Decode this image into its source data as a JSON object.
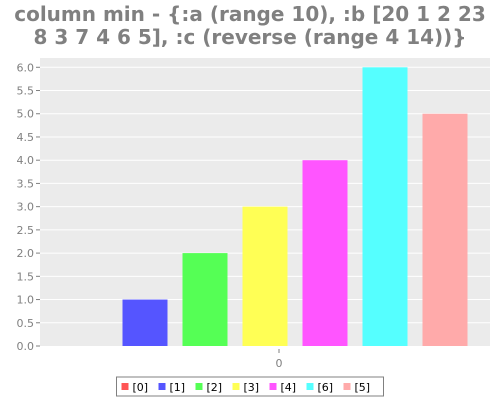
{
  "chart_data": {
    "type": "bar",
    "title_lines": [
      "column min - {:a (range 10), :b [20 1 2 23",
      "8 3 7 4 6 5], :c (reverse (range 4 14))}"
    ],
    "categories": [
      "0"
    ],
    "series": [
      {
        "name": "[0]",
        "color": "#ff5555",
        "values": [
          0
        ]
      },
      {
        "name": "[1]",
        "color": "#5555ff",
        "values": [
          1
        ]
      },
      {
        "name": "[2]",
        "color": "#55ff55",
        "values": [
          2
        ]
      },
      {
        "name": "[3]",
        "color": "#ffff55",
        "values": [
          3
        ]
      },
      {
        "name": "[4]",
        "color": "#ff55ff",
        "values": [
          4
        ]
      },
      {
        "name": "[6]",
        "color": "#55ffff",
        "values": [
          6
        ]
      },
      {
        "name": "[5]",
        "color": "#ffaaaa",
        "values": [
          5
        ]
      }
    ],
    "ylim": [
      0,
      6.2
    ],
    "yticks": [
      "0.0",
      "0.5",
      "1.0",
      "1.5",
      "2.0",
      "2.5",
      "3.0",
      "3.5",
      "4.0",
      "4.5",
      "5.0",
      "5.5",
      "6.0"
    ],
    "grid": true,
    "legend_position": "bottom",
    "colors": {
      "plot_background": "#ebebeb",
      "grid": "#ffffff",
      "text": "#808080"
    }
  }
}
